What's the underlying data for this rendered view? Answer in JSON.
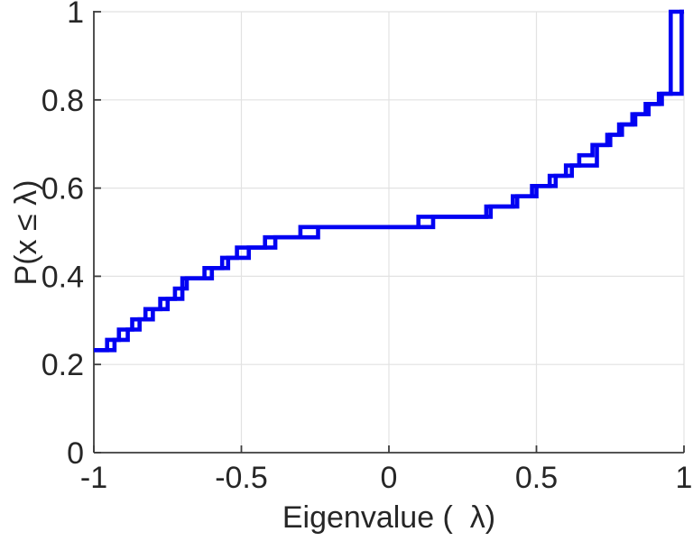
{
  "chart_data": {
    "type": "step",
    "title": "",
    "xlabel": "Eigenvalue (  λ)",
    "ylabel": "P(x ≤ λ)",
    "xlim": [
      -1,
      1
    ],
    "ylim": [
      0,
      1
    ],
    "xticks": [
      -1,
      -0.5,
      0,
      0.5,
      1
    ],
    "xtick_labels": [
      "-1",
      "-0.5",
      "0",
      "0.5",
      "1"
    ],
    "yticks": [
      0,
      0.2,
      0.4,
      0.6,
      0.8,
      1
    ],
    "ytick_labels": [
      "0",
      "0.2",
      "0.4",
      "0.6",
      "0.8",
      "1"
    ],
    "grid": true,
    "legend": "none",
    "line_color": "#0202f2",
    "step_height": 0.023256,
    "description": "Two nearly coincident empirical CDF staircase curves of eigenvalues; start at P=0.233 at lambda=-1, plateau near 0.5 in the middle, final jump from 0.814 to 1.0 near lambda=1",
    "series": [
      {
        "name": "ecdf-1",
        "x_start": -1,
        "y_start": 0.232558,
        "rise_x": [
          -0.955,
          -0.915,
          -0.87,
          -0.825,
          -0.775,
          -0.725,
          -0.685,
          -0.625,
          -0.565,
          -0.515,
          -0.42,
          -0.3,
          0.1,
          0.33,
          0.42,
          0.485,
          0.545,
          0.6,
          0.645,
          0.69,
          0.74,
          0.78,
          0.825,
          0.87,
          0.915
        ],
        "jump_x": 0.955,
        "jump_to": 1.0,
        "x_end": 1.0
      },
      {
        "name": "ecdf-2",
        "x_start": -1,
        "y_start": 0.232558,
        "rise_x": [
          -0.93,
          -0.885,
          -0.845,
          -0.8,
          -0.75,
          -0.7,
          -0.7,
          -0.6,
          -0.545,
          -0.475,
          -0.385,
          -0.24,
          0.15,
          0.345,
          0.435,
          0.5,
          0.565,
          0.62,
          0.705,
          0.705,
          0.75,
          0.79,
          0.835,
          0.88,
          0.925
        ],
        "jump_x": 0.992,
        "jump_to": 1.0,
        "x_end": 1.0
      }
    ]
  }
}
